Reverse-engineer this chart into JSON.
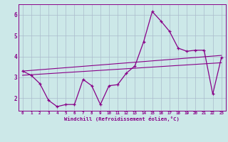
{
  "xlabel": "Windchill (Refroidissement éolien,°C)",
  "background_color": "#cce8e8",
  "line_color": "#880088",
  "grid_color": "#aabbcc",
  "hours": [
    0,
    1,
    2,
    3,
    4,
    5,
    6,
    7,
    8,
    9,
    10,
    11,
    12,
    13,
    14,
    15,
    16,
    17,
    18,
    19,
    20,
    21,
    22,
    23
  ],
  "windchill": [
    3.3,
    3.1,
    2.7,
    1.9,
    1.6,
    1.7,
    1.7,
    2.9,
    2.6,
    1.7,
    2.6,
    2.65,
    3.2,
    3.55,
    4.7,
    6.15,
    5.7,
    5.2,
    4.4,
    4.25,
    4.3,
    4.3,
    2.2,
    3.95
  ],
  "trend1_x": [
    0,
    23
  ],
  "trend1_y": [
    3.3,
    4.05
  ],
  "trend2_x": [
    0,
    23
  ],
  "trend2_y": [
    3.1,
    3.7
  ],
  "ylim_min": 1.4,
  "ylim_max": 6.5,
  "xlim_min": -0.5,
  "xlim_max": 23.5,
  "yticks": [
    2,
    3,
    4,
    5,
    6
  ],
  "xticks": [
    0,
    1,
    2,
    3,
    4,
    5,
    6,
    7,
    8,
    9,
    10,
    11,
    12,
    13,
    14,
    15,
    16,
    17,
    18,
    19,
    20,
    21,
    22,
    23
  ]
}
